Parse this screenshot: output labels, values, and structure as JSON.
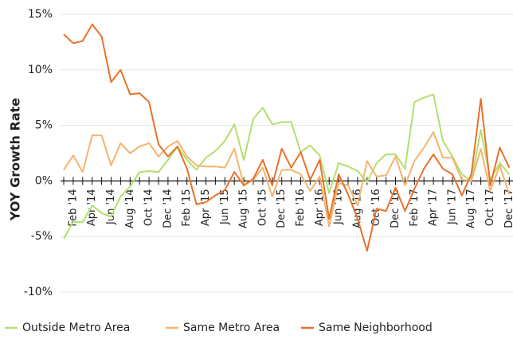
{
  "chart_data": {
    "type": "line",
    "ylabel": "YOY Growth Rate",
    "categories": [
      null,
      "Feb '14",
      null,
      "Apr '14",
      null,
      "Jun '14",
      null,
      "Aug '14",
      null,
      "Oct '14",
      null,
      "Dec '14",
      null,
      "Feb '15",
      null,
      "Apr '15",
      null,
      "Jun '15",
      null,
      "Aug '15",
      null,
      "Oct '15",
      null,
      "Dec '15",
      null,
      "Feb '16",
      null,
      "Apr '16",
      null,
      "Jun '16",
      null,
      "Aug '16",
      null,
      "Oct '16",
      null,
      "Dec '16",
      null,
      "Feb '17",
      null,
      "Apr '17",
      null,
      "Jun '17",
      null,
      "Aug '17",
      null,
      "Oct '17",
      null,
      "Dec '17"
    ],
    "series": [
      {
        "name": "Outside Metro Area",
        "color": "#b3df6c",
        "values": [
          -5.2,
          -3.7,
          -3.7,
          -2.2,
          -2.9,
          -3.2,
          -1.4,
          -0.5,
          0.8,
          0.9,
          0.8,
          1.9,
          3.1,
          1.9,
          1.0,
          2.1,
          2.7,
          3.6,
          5.1,
          1.9,
          5.6,
          6.6,
          5.1,
          5.3,
          5.3,
          2.6,
          3.2,
          2.3,
          -1.1,
          1.6,
          1.3,
          0.9,
          -0.1,
          1.6,
          2.4,
          2.4,
          1.1,
          7.1,
          7.5,
          7.8,
          3.6,
          2.2,
          0.6,
          0,
          4.6,
          0.1,
          1.6,
          0.6
        ]
      },
      {
        "name": "Same Metro Area",
        "color": "#f5b36e",
        "values": [
          1.0,
          2.3,
          0.8,
          4.1,
          4.1,
          1.4,
          3.4,
          2.5,
          3.1,
          3.4,
          2.2,
          3.1,
          3.6,
          2.2,
          1.4,
          1.3,
          1.3,
          1.2,
          2.9,
          -0.4,
          0.1,
          1.2,
          -1.4,
          1.0,
          1.0,
          0.6,
          -0.9,
          0.4,
          -4.1,
          -0.2,
          -0.4,
          -2.2,
          1.8,
          0.4,
          0.5,
          2.2,
          -0.4,
          1.8,
          3.0,
          4.4,
          2.1,
          2.1,
          0.1,
          0,
          2.9,
          -0.9,
          1.4,
          -1.2
        ]
      },
      {
        "name": "Same Neighborhood",
        "color": "#e8722a",
        "values": [
          13.2,
          12.4,
          12.6,
          14.1,
          13.0,
          8.9,
          10.0,
          7.8,
          7.9,
          7.1,
          3.3,
          2.2,
          3.1,
          1.1,
          -2.1,
          -1.9,
          -1.3,
          -0.8,
          0.8,
          -0.4,
          0.2,
          1.9,
          -0.4,
          2.9,
          1.2,
          2.6,
          0.1,
          1.9,
          -3.4,
          0.6,
          -1.2,
          -3.4,
          -6.3,
          -2.5,
          -2.7,
          -0.6,
          -2.7,
          -0.7,
          1.1,
          2.4,
          1.1,
          0.6,
          -1.3,
          0.6,
          7.4,
          -0.4,
          3.0,
          1.2
        ]
      }
    ],
    "ylim": [
      -10,
      15
    ],
    "yticks": [
      {
        "value": -10,
        "label": "-10%"
      },
      {
        "value": -5,
        "label": "-5%"
      },
      {
        "value": 0,
        "label": "0%"
      },
      {
        "value": 5,
        "label": "5%"
      },
      {
        "value": 10,
        "label": "10%"
      },
      {
        "value": 15,
        "label": "15%"
      }
    ],
    "grid": true,
    "legend": "bottom"
  }
}
